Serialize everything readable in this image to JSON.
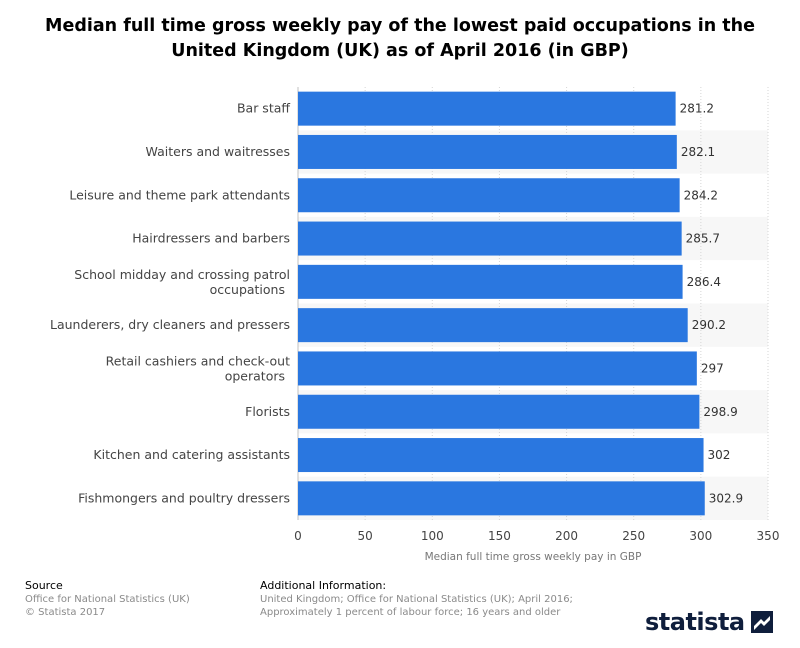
{
  "title": "Median full time gross weekly pay of the lowest paid occupations in the United Kingdom (UK) as of April 2016 (in GBP)",
  "chart_data": {
    "type": "bar",
    "orientation": "horizontal",
    "title": "Median full time gross weekly pay of the lowest paid occupations in the United Kingdom (UK) as of April 2016 (in GBP)",
    "categories": [
      "Bar staff",
      "Waiters and waitresses",
      "Leisure and theme park attendants",
      "Hairdressers and barbers",
      "School midday and crossing patrol occupations",
      "Launderers, dry cleaners and pressers",
      "Retail cashiers and check-out operators",
      "Florists",
      "Kitchen and catering assistants",
      "Fishmongers and poultry dressers"
    ],
    "values": [
      281.2,
      282.1,
      284.2,
      285.7,
      286.4,
      290.2,
      297,
      298.9,
      302,
      302.9
    ],
    "value_labels": [
      "281.2",
      "282.1",
      "284.2",
      "285.7",
      "286.4",
      "290.2",
      "297",
      "298.9",
      "302",
      "302.9"
    ],
    "xlabel": "Median full time gross weekly pay in GBP",
    "ylabel": "",
    "xlim": [
      0,
      350
    ],
    "xticks": [
      0,
      50,
      100,
      150,
      200,
      250,
      300,
      350
    ],
    "grid": true,
    "bar_color": "#2a77e0"
  },
  "footer": {
    "source_heading": "Source",
    "source_lines": [
      "Office for National Statistics (UK)",
      "© Statista 2017"
    ],
    "info_heading": "Additional Information:",
    "info_lines": [
      "United Kingdom; Office for National Statistics (UK); April 2016;",
      "Approximately 1 percent of labour force; 16 years and older"
    ]
  },
  "logo": {
    "text": "statista",
    "icon": "statista-logo-icon"
  }
}
